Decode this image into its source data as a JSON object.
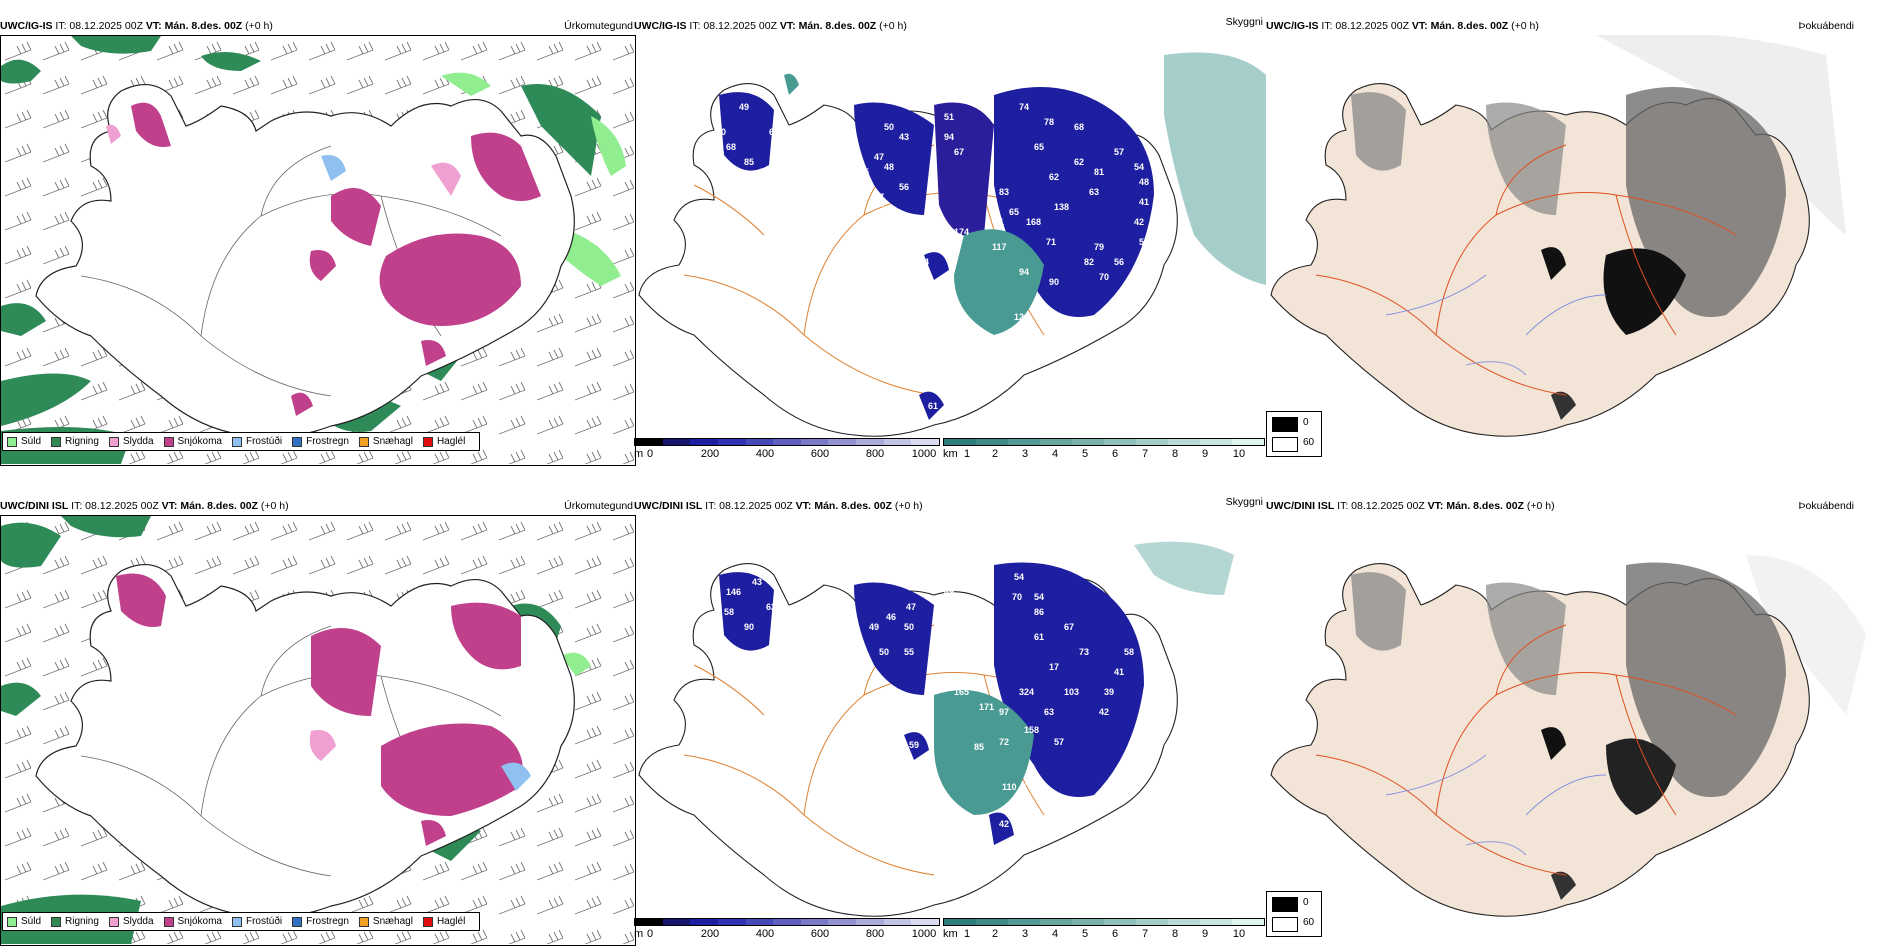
{
  "rows": [
    {
      "model": "UWC/IG-IS",
      "it_label": "IT: 08.12.2025 00Z",
      "vt_prefix": "VT:",
      "vt_value": "Mán. 8.des. 00Z",
      "lead": "(+0 h)",
      "panels": {
        "precip": "Úrkomutegund",
        "cloud": "Skyggni",
        "fog": "Þokuábendi"
      },
      "visibility_labels": [
        "49",
        "60",
        "68",
        "85",
        "82",
        "63",
        "50",
        "47",
        "43",
        "45",
        "48",
        "57",
        "56",
        "55",
        "51",
        "94",
        "67",
        "74",
        "78",
        "65",
        "68",
        "62",
        "62",
        "81",
        "138",
        "63",
        "57",
        "54",
        "48",
        "41",
        "42",
        "58",
        "56",
        "79",
        "82",
        "70",
        "90",
        "94",
        "117",
        "174",
        "61",
        "64",
        "83",
        "81",
        "168",
        "71",
        "65",
        "12",
        "46",
        "61"
      ]
    },
    {
      "model": "UWC/DINI ISL",
      "it_label": "IT: 08.12.2025 00Z",
      "vt_prefix": "VT:",
      "vt_value": "Mán. 8.des. 00Z",
      "lead": "(+0 h)",
      "panels": {
        "precip": "Úrkomutegund",
        "cloud": "Skyggni",
        "fog": "Þokuábendi"
      },
      "visibility_labels": [
        "146",
        "43",
        "58",
        "62",
        "90",
        "49",
        "46",
        "47",
        "50",
        "55",
        "50",
        "49",
        "54",
        "70",
        "54",
        "86",
        "67",
        "61",
        "73",
        "103",
        "17",
        "324",
        "63",
        "158",
        "57",
        "39",
        "42",
        "41",
        "58",
        "165",
        "171",
        "97",
        "72",
        "85",
        "110",
        "71",
        "42",
        "59"
      ]
    }
  ],
  "precip_legend": [
    {
      "label": "Súld",
      "color": "#90ee90"
    },
    {
      "label": "Rigning",
      "color": "#2e8b57"
    },
    {
      "label": "Slydda",
      "color": "#f0a0d0"
    },
    {
      "label": "Snjókoma",
      "color": "#c0408c"
    },
    {
      "label": "Frostúði",
      "color": "#90c0f0"
    },
    {
      "label": "Frostregn",
      "color": "#3070c0"
    },
    {
      "label": "Snæhagl",
      "color": "#f0a020"
    },
    {
      "label": "Haglél",
      "color": "#e01010"
    }
  ],
  "terrain_bar": {
    "unit": "m",
    "ticks": [
      "0",
      "200",
      "400",
      "600",
      "800",
      "1000"
    ],
    "colors": [
      "#000000",
      "#151570",
      "#1e1ea0",
      "#3030b0",
      "#4848b8",
      "#6060c0",
      "#7a7ac8",
      "#9292d0",
      "#aaaadb",
      "#c2c2e6",
      "#dadaf0"
    ]
  },
  "cloudbase_bar": {
    "unit": "km",
    "ticks": [
      "1",
      "2",
      "3",
      "4",
      "5",
      "6",
      "7",
      "8",
      "9",
      "10"
    ],
    "colors": [
      "#2a7f7a",
      "#3e8c87",
      "#529994",
      "#66a6a1",
      "#7ab3ae",
      "#8ec0bb",
      "#a2cdc8",
      "#b6dad5",
      "#cae7e2",
      "#def4ef"
    ]
  },
  "fog_legend": {
    "items": [
      {
        "label": "0",
        "color": "#000000"
      },
      {
        "label": "60",
        "color": "#ffffff"
      }
    ]
  },
  "colors": {
    "land": "#f2e4d6",
    "roads": "#e05020",
    "rivers": "#8090e0",
    "coast": "#222222",
    "snow": "#c0408c",
    "rain": "#2e8b57",
    "cloud": "#2a1e9a",
    "cloudteal": "#4a9a94"
  }
}
